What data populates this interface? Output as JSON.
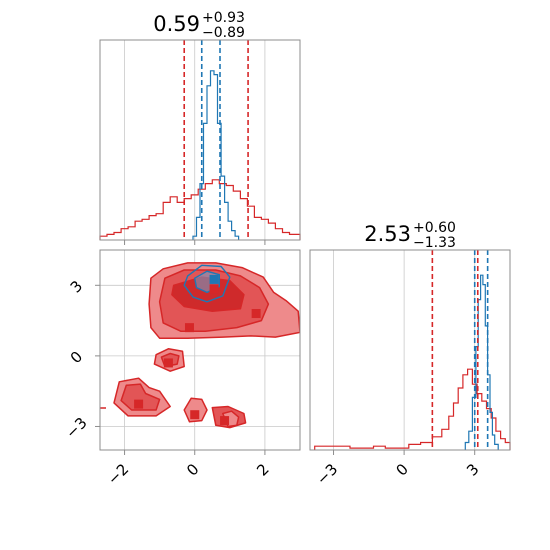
{
  "colors": {
    "red": "#d62728",
    "red_fill_light": "#ee8a8b",
    "red_fill_mid": "#e25556",
    "red_fill_dark": "#cf2a2b",
    "blue": "#1f77b4",
    "blue_fill": "#6fa3cf",
    "grid": "#c9c9c9",
    "axes": "#8c8c8c",
    "text": "#000000"
  },
  "chart_data": [
    {
      "type": "histogram",
      "panel": "marginal x",
      "title": {
        "value": "0.59",
        "plus": "+0.93",
        "minus": "−0.89"
      },
      "xlim": [
        -2.7,
        3.0
      ],
      "x": [
        -2.7,
        -2.5,
        -2.3,
        -2.1,
        -1.9,
        -1.7,
        -1.5,
        -1.3,
        -1.1,
        -0.9,
        -0.7,
        -0.5,
        -0.3,
        -0.1,
        0.1,
        0.3,
        0.5,
        0.7,
        0.9,
        1.1,
        1.3,
        1.5,
        1.7,
        1.9,
        2.1,
        2.3,
        2.5,
        2.7,
        3.0
      ],
      "series": [
        {
          "color": "red",
          "values": [
            0.02,
            0.03,
            0.04,
            0.06,
            0.07,
            0.1,
            0.11,
            0.13,
            0.14,
            0.2,
            0.23,
            0.2,
            0.22,
            0.24,
            0.27,
            0.3,
            0.32,
            0.3,
            0.29,
            0.26,
            0.22,
            0.18,
            0.12,
            0.11,
            0.09,
            0.06,
            0.04,
            0.03
          ]
        },
        {
          "color": "blue",
          "x": [
            -0.05,
            0.05,
            0.15,
            0.25,
            0.35,
            0.45,
            0.55,
            0.65,
            0.75,
            0.85,
            0.95,
            1.05,
            1.15,
            1.25
          ],
          "values": [
            0.02,
            0.12,
            0.3,
            0.62,
            0.82,
            0.9,
            0.88,
            0.62,
            0.34,
            0.2,
            0.1,
            0.05,
            0.02
          ]
        }
      ],
      "quantiles": [
        {
          "color": "red",
          "values": [
            -0.3,
            1.52
          ]
        },
        {
          "color": "blue",
          "values": [
            0.2,
            0.72
          ]
        }
      ],
      "xticks": [
        -2,
        0,
        2
      ]
    },
    {
      "type": "contour",
      "panel": "joint",
      "xlim": [
        -2.7,
        3.0
      ],
      "ylim": [
        -4.0,
        4.5
      ],
      "xticks": [
        -2,
        0,
        2
      ],
      "yticks": [
        -3,
        0,
        3
      ],
      "xtick_labels": [
        "−2",
        "0",
        "2"
      ],
      "ytick_labels": [
        "−3",
        "0",
        "3"
      ],
      "red_regions": [
        {
          "center": [
            0.35,
            2.3
          ],
          "rx": 1.35,
          "ry": 1.1,
          "levels": [
            [
              [
                -1.25,
                3.3
              ],
              [
                -0.9,
                3.7
              ],
              [
                -0.2,
                3.95
              ],
              [
                0.6,
                3.95
              ],
              [
                1.35,
                3.75
              ],
              [
                1.95,
                3.35
              ],
              [
                2.25,
                2.7
              ],
              [
                2.6,
                2.35
              ],
              [
                2.95,
                1.9
              ],
              [
                3.0,
                1.0
              ],
              [
                2.3,
                0.8
              ],
              [
                1.6,
                0.85
              ],
              [
                0.8,
                0.8
              ],
              [
                -0.2,
                0.75
              ],
              [
                -1.0,
                0.75
              ],
              [
                -1.25,
                1.2
              ],
              [
                -1.3,
                2.2
              ]
            ],
            [
              [
                -0.85,
                3.3
              ],
              [
                -0.3,
                3.65
              ],
              [
                0.6,
                3.65
              ],
              [
                1.3,
                3.4
              ],
              [
                1.85,
                2.9
              ],
              [
                2.1,
                2.2
              ],
              [
                1.9,
                1.5
              ],
              [
                1.2,
                1.2
              ],
              [
                0.3,
                1.05
              ],
              [
                -0.4,
                1.05
              ],
              [
                -0.9,
                1.4
              ],
              [
                -1.0,
                2.3
              ]
            ],
            [
              [
                -0.6,
                3.0
              ],
              [
                0.2,
                3.35
              ],
              [
                1.0,
                3.2
              ],
              [
                1.4,
                2.6
              ],
              [
                1.3,
                2.0
              ],
              [
                0.5,
                1.9
              ],
              [
                -0.3,
                2.1
              ],
              [
                -0.65,
                2.6
              ]
            ]
          ]
        },
        {
          "levels": [
            [
              [
                -1.1,
                0.05
              ],
              [
                -0.75,
                0.3
              ],
              [
                -0.35,
                0.2
              ],
              [
                -0.3,
                -0.45
              ],
              [
                -0.7,
                -0.65
              ],
              [
                -1.15,
                -0.35
              ]
            ],
            [
              [
                -0.95,
                -0.05
              ],
              [
                -0.7,
                0.1
              ],
              [
                -0.45,
                0.0
              ],
              [
                -0.5,
                -0.35
              ],
              [
                -0.85,
                -0.45
              ]
            ]
          ]
        },
        {
          "levels": [
            [
              [
                -2.15,
                -1.1
              ],
              [
                -1.6,
                -0.95
              ],
              [
                -1.3,
                -1.35
              ],
              [
                -1.0,
                -1.5
              ],
              [
                -0.7,
                -2.15
              ],
              [
                -1.1,
                -2.55
              ],
              [
                -1.9,
                -2.55
              ],
              [
                -2.3,
                -2.0
              ]
            ],
            [
              [
                -1.95,
                -1.25
              ],
              [
                -1.55,
                -1.2
              ],
              [
                -1.4,
                -1.6
              ],
              [
                -1.0,
                -1.85
              ],
              [
                -1.1,
                -2.3
              ],
              [
                -1.8,
                -2.3
              ],
              [
                -2.1,
                -1.9
              ]
            ]
          ]
        },
        {
          "levels": [
            [
              [
                -0.1,
                -1.8
              ],
              [
                0.2,
                -1.85
              ],
              [
                0.35,
                -2.3
              ],
              [
                0.2,
                -2.75
              ],
              [
                -0.15,
                -2.8
              ],
              [
                -0.3,
                -2.3
              ]
            ],
            [
              [
                0.5,
                -2.2
              ],
              [
                0.95,
                -2.15
              ],
              [
                1.4,
                -2.45
              ],
              [
                1.45,
                -2.85
              ],
              [
                1.0,
                -3.05
              ],
              [
                0.6,
                -2.95
              ]
            ]
          ]
        },
        {
          "levels": [
            [
              [
                0.8,
                -2.45
              ],
              [
                1.05,
                -2.35
              ],
              [
                1.25,
                -2.6
              ],
              [
                1.2,
                -2.95
              ],
              [
                0.95,
                -3.0
              ]
            ]
          ]
        }
      ],
      "blue_region": {
        "levels": [
          [
            [
              -0.2,
              3.4
            ],
            [
              0.2,
              3.85
            ],
            [
              0.75,
              3.8
            ],
            [
              1.0,
              3.35
            ],
            [
              0.8,
              2.55
            ],
            [
              0.35,
              2.3
            ],
            [
              -0.05,
              2.5
            ],
            [
              -0.3,
              3.0
            ]
          ],
          [
            [
              0.0,
              3.3
            ],
            [
              0.35,
              3.6
            ],
            [
              0.7,
              3.45
            ],
            [
              0.7,
              2.95
            ],
            [
              0.35,
              2.7
            ],
            [
              0.05,
              2.9
            ]
          ]
        ]
      },
      "markers": [
        {
          "color": "red",
          "x": 0.55,
          "y": 2.85
        },
        {
          "color": "red",
          "x": 1.75,
          "y": 1.8
        },
        {
          "color": "red",
          "x": -0.15,
          "y": 1.2
        },
        {
          "color": "red",
          "x": -0.75,
          "y": -0.3
        },
        {
          "color": "red",
          "x": -1.6,
          "y": -2.05
        },
        {
          "color": "red",
          "x": 0.0,
          "y": -2.5
        },
        {
          "color": "red",
          "x": 0.85,
          "y": -2.75
        },
        {
          "color": "blue",
          "x": 0.55,
          "y": 3.25
        }
      ]
    },
    {
      "type": "histogram",
      "panel": "marginal y",
      "title": {
        "value": "2.53",
        "plus": "+0.60",
        "minus": "−1.33"
      },
      "xlim": [
        -4.0,
        4.5
      ],
      "xticks": [
        -3,
        0,
        3
      ],
      "xtick_labels": [
        "−3",
        "0",
        "3"
      ],
      "series": [
        {
          "color": "red",
          "x": [
            -3.8,
            -3.3,
            -2.8,
            -2.3,
            -1.8,
            -1.3,
            -0.8,
            -0.3,
            0.2,
            0.7,
            1.2,
            1.6,
            1.9,
            2.1,
            2.3,
            2.5,
            2.7,
            2.9,
            3.1,
            3.3,
            3.5,
            3.7,
            3.9,
            4.1,
            4.3,
            4.5
          ],
          "values": [
            0.02,
            0.02,
            0.02,
            0.01,
            0.01,
            0.02,
            0.01,
            0.01,
            0.03,
            0.04,
            0.07,
            0.11,
            0.18,
            0.25,
            0.33,
            0.4,
            0.43,
            0.35,
            0.3,
            0.26,
            0.22,
            0.17,
            0.1,
            0.06,
            0.04
          ]
        },
        {
          "color": "blue",
          "x": [
            2.6,
            2.75,
            2.9,
            3.05,
            3.15,
            3.25,
            3.35,
            3.45,
            3.55,
            3.65,
            3.75,
            3.85,
            4.0
          ],
          "values": [
            0.04,
            0.1,
            0.28,
            0.55,
            0.8,
            0.93,
            0.88,
            0.66,
            0.4,
            0.2,
            0.08,
            0.03
          ]
        }
      ],
      "quantiles": [
        {
          "color": "red",
          "values": [
            1.2,
            3.13
          ]
        },
        {
          "color": "blue",
          "values": [
            3.0,
            3.55
          ]
        }
      ]
    }
  ]
}
